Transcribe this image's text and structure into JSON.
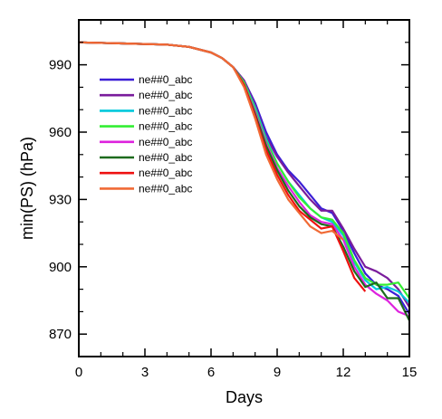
{
  "chart_data": {
    "type": "line",
    "xlabel": "Days",
    "ylabel": "min(PS) (hPa)",
    "xlim": [
      0,
      15
    ],
    "ylim": [
      860,
      1010
    ],
    "xticks": [
      0,
      3,
      6,
      9,
      12,
      15
    ],
    "yticks": [
      870,
      900,
      930,
      960,
      990
    ],
    "grid": false,
    "legend_placement": "top-left",
    "series": [
      {
        "name": "ne##0_abc",
        "color": "#3b1fd6",
        "x": [
          0,
          2,
          4,
          5,
          6,
          6.5,
          7,
          7.5,
          8,
          8.5,
          9,
          9.5,
          10,
          10.5,
          11,
          11.5,
          12,
          12.5,
          13,
          13.5,
          14,
          14.5,
          15
        ],
        "y": [
          1000,
          999.5,
          999,
          998,
          995.5,
          993,
          989,
          983,
          973,
          960,
          950,
          943,
          938,
          932,
          926,
          924,
          916,
          906,
          897,
          892,
          890,
          887,
          879
        ]
      },
      {
        "name": "ne##0_abc",
        "color": "#7a1c9c",
        "x": [
          0,
          2,
          4,
          5,
          6,
          6.5,
          7,
          7.5,
          8,
          8.5,
          9,
          9.5,
          10,
          10.5,
          11,
          11.5,
          12,
          12.5,
          13,
          13.5,
          14,
          14.5,
          15
        ],
        "y": [
          1000,
          999.5,
          999,
          998,
          995.5,
          993,
          989,
          983,
          972,
          958,
          949,
          942,
          936,
          930,
          925,
          925,
          917,
          908,
          900,
          898,
          895,
          890,
          882
        ]
      },
      {
        "name": "ne##0_abc",
        "color": "#00c8dc",
        "x": [
          0,
          2,
          4,
          5,
          6,
          6.5,
          7,
          7.5,
          8,
          8.5,
          9,
          9.5,
          10,
          10.5,
          11,
          11.5,
          12,
          12.5,
          13,
          13.5,
          14,
          14.5,
          15
        ],
        "y": [
          1000,
          999.5,
          999,
          998,
          995.5,
          993,
          989,
          982,
          971,
          957,
          946,
          938,
          932,
          926,
          922,
          920,
          914,
          902,
          894,
          890,
          891,
          889,
          884
        ]
      },
      {
        "name": "ne##0_abc",
        "color": "#33ee33",
        "x": [
          0,
          2,
          4,
          5,
          6,
          6.5,
          7,
          7.5,
          8,
          8.5,
          9,
          9.5,
          10,
          10.5,
          11,
          11.5,
          12,
          12.5,
          13,
          13.5,
          14,
          14.5,
          15
        ],
        "y": [
          1000,
          999.5,
          999,
          998,
          995.5,
          993,
          989,
          982,
          970,
          956,
          946,
          938,
          931,
          926,
          922,
          921,
          915,
          903,
          895,
          892,
          892,
          893,
          886
        ]
      },
      {
        "name": "ne##0_abc",
        "color": "#dd22dd",
        "x": [
          0,
          2,
          4,
          5,
          6,
          6.5,
          7,
          7.5,
          8,
          8.5,
          9,
          9.5,
          10,
          10.5,
          11,
          11.5,
          12,
          12.5,
          13,
          13.5,
          14,
          14.5,
          15
        ],
        "y": [
          1000,
          999.5,
          999,
          998,
          995.5,
          993,
          989,
          981,
          969,
          955,
          944,
          936,
          929,
          923,
          920,
          919,
          912,
          900,
          892,
          888,
          885,
          880,
          878
        ]
      },
      {
        "name": "ne##0_abc",
        "color": "#1d6b1d",
        "x": [
          0,
          2,
          4,
          5,
          6,
          6.5,
          7,
          7.5,
          8,
          8.5,
          9,
          9.5,
          10,
          10.5,
          11,
          11.5,
          12,
          12.5,
          13,
          13.5,
          14,
          14.5,
          15
        ],
        "y": [
          1000,
          999.5,
          999,
          998,
          995.5,
          993,
          989,
          981,
          968,
          954,
          943,
          934,
          927,
          922,
          919,
          918,
          909,
          898,
          891,
          893,
          886,
          886,
          876
        ]
      },
      {
        "name": "ne##0_abc",
        "color": "#ee1111",
        "x": [
          0,
          2,
          4,
          5,
          6,
          6.5,
          7,
          7.5,
          8,
          8.5,
          9,
          9.5,
          10,
          10.5,
          11,
          11.5,
          12,
          12.5,
          13
        ],
        "y": [
          1000,
          999.5,
          999,
          998,
          995.5,
          993,
          989,
          981,
          967,
          952,
          941,
          932,
          925,
          921,
          917,
          918,
          907,
          895,
          889
        ]
      },
      {
        "name": "ne##0_abc",
        "color": "#f06a35",
        "x": [
          0,
          2,
          4,
          5,
          6,
          6.5,
          7,
          7.5,
          8,
          8.5,
          9,
          9.5,
          10,
          10.5,
          11,
          11.5,
          12
        ],
        "y": [
          1000,
          999.5,
          999,
          998,
          995.5,
          993,
          989,
          980,
          966,
          950,
          939,
          930,
          924,
          918,
          915,
          916,
          912
        ]
      }
    ]
  }
}
